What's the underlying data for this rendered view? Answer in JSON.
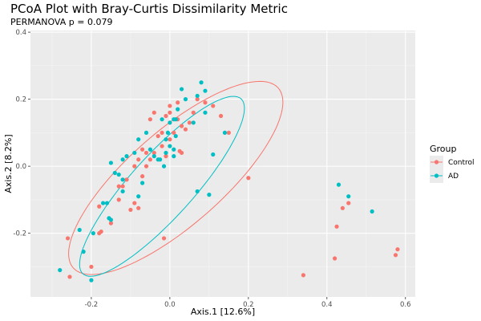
{
  "chart_data": {
    "type": "scatter",
    "title": "PCoA Plot with Bray-Curtis Dissimilarity Metric",
    "subtitle": "PERMANOVA p = 0.079",
    "xlabel": "Axis.1   [12.6%]",
    "ylabel": "Axis.2   [8.2%]",
    "xlim": [
      -0.355,
      0.625
    ],
    "ylim": [
      -0.39,
      0.405
    ],
    "xticks": [
      -0.2,
      0.0,
      0.2,
      0.4,
      0.6
    ],
    "xtick_labels": [
      "-0.2",
      "0.0",
      "0.2",
      "0.4",
      "0.6"
    ],
    "yticks": [
      -0.2,
      0.0,
      0.2,
      0.4
    ],
    "ytick_labels": [
      "-0.2",
      "0.0",
      "0.2",
      "0.4"
    ],
    "grid": true,
    "legend_title": "Group",
    "legend_position": "right",
    "series": [
      {
        "name": "Control",
        "color": "#F8766D",
        "points": [
          [
            -0.26,
            -0.215
          ],
          [
            -0.255,
            -0.33
          ],
          [
            -0.2,
            -0.3
          ],
          [
            -0.18,
            -0.2
          ],
          [
            -0.175,
            -0.195
          ],
          [
            -0.18,
            -0.12
          ],
          [
            -0.15,
            -0.17
          ],
          [
            -0.13,
            -0.1
          ],
          [
            -0.12,
            -0.06
          ],
          [
            -0.1,
            -0.13
          ],
          [
            -0.09,
            -0.11
          ],
          [
            -0.08,
            -0.125
          ],
          [
            -0.07,
            -0.03
          ],
          [
            -0.06,
            0.0
          ],
          [
            -0.05,
            0.02
          ],
          [
            -0.07,
            0.05
          ],
          [
            -0.04,
            0.04
          ],
          [
            -0.02,
            0.06
          ],
          [
            -0.03,
            0.09
          ],
          [
            -0.01,
            0.03
          ],
          [
            0.0,
            0.08
          ],
          [
            0.01,
            0.1
          ],
          [
            0.03,
            0.04
          ],
          [
            0.04,
            0.11
          ],
          [
            0.05,
            0.13
          ],
          [
            0.06,
            0.16
          ],
          [
            0.07,
            0.2
          ],
          [
            0.09,
            0.19
          ],
          [
            0.11,
            0.18
          ],
          [
            0.13,
            0.15
          ],
          [
            0.15,
            0.1
          ],
          [
            0.0,
            0.18
          ],
          [
            -0.01,
            0.15
          ],
          [
            0.02,
            0.19
          ],
          [
            -0.04,
            0.16
          ],
          [
            0.0,
            0.16
          ],
          [
            -0.05,
            0.14
          ],
          [
            0.03,
            0.12
          ],
          [
            0.02,
            0.14
          ],
          [
            -0.02,
            0.1
          ],
          [
            -0.08,
            0.02
          ],
          [
            -0.06,
            0.04
          ],
          [
            -0.09,
            0.0
          ],
          [
            -0.11,
            -0.04
          ],
          [
            -0.13,
            -0.06
          ],
          [
            0.025,
            0.045
          ],
          [
            -0.015,
            -0.215
          ],
          [
            0.2,
            -0.035
          ],
          [
            0.34,
            -0.325
          ],
          [
            0.42,
            -0.275
          ],
          [
            0.425,
            -0.18
          ],
          [
            0.44,
            -0.125
          ],
          [
            0.455,
            -0.11
          ],
          [
            0.575,
            -0.265
          ],
          [
            0.58,
            -0.248
          ]
        ]
      },
      {
        "name": "AD",
        "color": "#00BFC4",
        "points": [
          [
            -0.28,
            -0.31
          ],
          [
            -0.23,
            -0.19
          ],
          [
            -0.22,
            -0.255
          ],
          [
            -0.2,
            -0.34
          ],
          [
            -0.195,
            -0.2
          ],
          [
            -0.17,
            -0.11
          ],
          [
            -0.16,
            -0.11
          ],
          [
            -0.155,
            -0.155
          ],
          [
            -0.15,
            -0.16
          ],
          [
            -0.15,
            0.01
          ],
          [
            -0.14,
            -0.02
          ],
          [
            -0.13,
            -0.025
          ],
          [
            -0.12,
            -0.04
          ],
          [
            -0.12,
            -0.075
          ],
          [
            -0.11,
            0.03
          ],
          [
            -0.09,
            0.04
          ],
          [
            -0.08,
            0.08
          ],
          [
            -0.08,
            -0.09
          ],
          [
            -0.07,
            -0.05
          ],
          [
            -0.06,
            0.1
          ],
          [
            -0.05,
            0.05
          ],
          [
            -0.04,
            0.03
          ],
          [
            -0.03,
            0.02
          ],
          [
            -0.02,
            0.14
          ],
          [
            -0.01,
            0.08
          ],
          [
            -0.015,
            0.0
          ],
          [
            0.0,
            0.13
          ],
          [
            0.01,
            0.14
          ],
          [
            0.02,
            0.17
          ],
          [
            0.03,
            0.23
          ],
          [
            0.04,
            0.2
          ],
          [
            0.06,
            0.13
          ],
          [
            0.07,
            0.21
          ],
          [
            0.08,
            0.25
          ],
          [
            0.09,
            0.16
          ],
          [
            0.0,
            0.06
          ],
          [
            -0.005,
            0.1
          ],
          [
            0.01,
            0.03
          ],
          [
            0.015,
            0.09
          ],
          [
            0.07,
            -0.075
          ],
          [
            0.1,
            -0.085
          ],
          [
            0.11,
            0.035
          ],
          [
            0.14,
            0.1
          ],
          [
            0.43,
            -0.055
          ],
          [
            0.455,
            -0.09
          ],
          [
            0.515,
            -0.135
          ],
          [
            -0.12,
            0.02
          ],
          [
            -0.025,
            0.02
          ],
          [
            0.015,
            0.14
          ],
          [
            0.09,
            0.225
          ],
          [
            -0.01,
            0.04
          ],
          [
            0.01,
            0.05
          ]
        ]
      }
    ],
    "ellipses": [
      {
        "group": "Control",
        "cx": 0.015,
        "cy": -0.035,
        "rx": 0.375,
        "ry": 0.13,
        "angle_deg": 47
      },
      {
        "group": "AD",
        "cx": -0.02,
        "cy": -0.06,
        "rx": 0.33,
        "ry": 0.085,
        "angle_deg": 53
      }
    ]
  }
}
